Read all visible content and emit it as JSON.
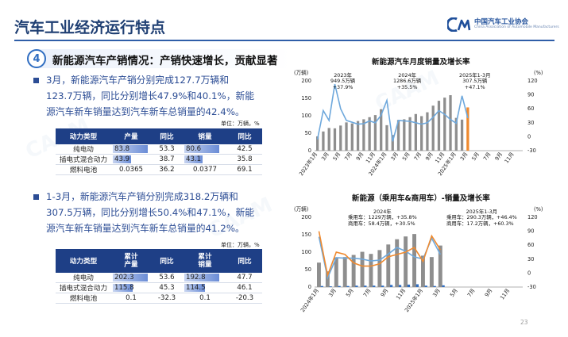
{
  "header": {
    "title": "汽车工业经济运行特点",
    "logo_cn": "中国汽车工业协会",
    "logo_en": "China Association of Automobile Manufacturers"
  },
  "section": {
    "number": "4",
    "title": "新能源汽车产销情况：产销快速增长，贡献显著"
  },
  "paragraph1": {
    "lines": [
      "3月，新能源汽车产销分别完成127.7万辆和",
      "123.7万辆，同比分别增长47.9%和40.1%，新能",
      "源汽车新车销量达到汽车新车总销量的42.4%。"
    ]
  },
  "paragraph2": {
    "lines": [
      "1-3月，新能源汽车产销分别完成318.2万辆和",
      "307.5万辆，同比分别增长50.4%和47.1%，新能",
      "源汽车新车销量达到汽车新车总销量的41.2%。"
    ]
  },
  "table1": {
    "unit": "单位：万辆，%",
    "headers": [
      "动力类型",
      "产量",
      "同比",
      "销量",
      "同比"
    ],
    "rows": [
      [
        "纯电动",
        "83.8",
        "53.3",
        "80.6",
        "42.5"
      ],
      [
        "插电式混合动力",
        "43.9",
        "38.7",
        "43.1",
        "35.8"
      ],
      [
        "燃料电池",
        "0.0365",
        "36.2",
        "0.0377",
        "69.1"
      ]
    ],
    "bar_fraction": [
      1.0,
      0.52,
      0.0,
      1.0,
      0.53,
      0.0
    ]
  },
  "table2": {
    "unit": "单位：万辆，%",
    "headers": [
      "动力类型",
      "累计产量",
      "同比",
      "累计销量",
      "同比"
    ],
    "rows": [
      [
        "纯电动",
        "202.3",
        "53.6",
        "192.8",
        "47.7"
      ],
      [
        "插电式混合动力",
        "115.8",
        "45.3",
        "114.5",
        "46.1"
      ],
      [
        "燃料电池",
        "0.1",
        "-32.3",
        "0.1",
        "-20.3"
      ]
    ],
    "bar_fraction": [
      1.0,
      0.57,
      0.0,
      1.0,
      0.59,
      0.0
    ]
  },
  "chart_data": [
    {
      "type": "bar",
      "title": "新能源汽车月度销量及增长率",
      "ylabel_left": "(万辆)",
      "ylabel_right": "(%)",
      "ylim_left": [
        0,
        200
      ],
      "ylim_right": [
        -30,
        120
      ],
      "yticks_left": [
        "0",
        "50",
        "100",
        "150",
        "200"
      ],
      "yticks_right": [
        "-30",
        "0",
        "30",
        "60",
        "90",
        "120"
      ],
      "xticks": [
        "2023年1月",
        "3月",
        "5月",
        "7月",
        "9月",
        "11月",
        "2024年1月",
        "3月",
        "5月",
        "7月",
        "9月",
        "11月",
        "2025年1月",
        "3月",
        "5月",
        "7月",
        "9月",
        "11月"
      ],
      "annotations": [
        [
          "2023年",
          "949.5万辆",
          "+37.9%"
        ],
        [
          "2024年",
          "1286.6万辆",
          "+35.5%"
        ],
        [
          "2025年1-3月",
          "307.5万辆",
          "+47.1%"
        ]
      ],
      "series": [
        {
          "values": [
            41,
            55,
            65,
            64,
            72,
            81,
            78,
            85,
            90,
            96,
            102,
            119,
            73,
            45,
            88,
            90,
            96,
            105,
            99,
            110,
            129,
            143,
            152,
            159,
            94,
            89,
            124
          ]
        },
        {
          "values": [
            -6,
            56,
            35,
            113,
            60,
            35,
            31,
            27,
            28,
            34,
            30,
            46,
            78,
            -10,
            35,
            34,
            33,
            30,
            27,
            30,
            42,
            56,
            48,
            37,
            29,
            88,
            40
          ]
        }
      ]
    },
    {
      "type": "bar",
      "title": "新能源（乘用车&商用车）-销量及增长率",
      "ylabel_left": "(万辆)",
      "ylabel_right": "(%)",
      "ylim_left": [
        0,
        200
      ],
      "ylim_right": [
        -30,
        120
      ],
      "yticks_left": [
        "0",
        "50",
        "100",
        "150",
        "200"
      ],
      "yticks_right": [
        "-30",
        "0",
        "30",
        "60",
        "90",
        "120"
      ],
      "xticks": [
        "2024年1月",
        "3月",
        "5月",
        "7月",
        "9月",
        "11月",
        "2025年1月",
        "3月",
        "5月",
        "7月",
        "9月",
        "11月"
      ],
      "annotations": [
        [
          "2024年",
          "乘用车：1229万辆，+35.8%",
          "商用车：58.4万辆，+30.5%"
        ],
        [
          "2025年1-3月",
          "乘用车：290.3万辆，+46.4%",
          "商用车：17.2万辆，+60.3%"
        ]
      ],
      "series": [
        {
          "values": [
            70,
            45,
            85,
            86,
            92,
            101,
            95,
            106,
            122,
            137,
            145,
            152,
            90,
            86,
            119
          ]
        },
        {
          "values": [
            3,
            2,
            3,
            3,
            4,
            4,
            4,
            4,
            6,
            6,
            7,
            8,
            4,
            3,
            5
          ]
        },
        {
          "values": [
            78,
            -10,
            33,
            32,
            32,
            30,
            26,
            28,
            41,
            55,
            47,
            35,
            30,
            75,
            40
          ]
        },
        {
          "values": [
            90,
            -5,
            45,
            40,
            22,
            15,
            15,
            20,
            35,
            40,
            45,
            55,
            25,
            80,
            50
          ]
        }
      ]
    }
  ],
  "page_number": "23"
}
